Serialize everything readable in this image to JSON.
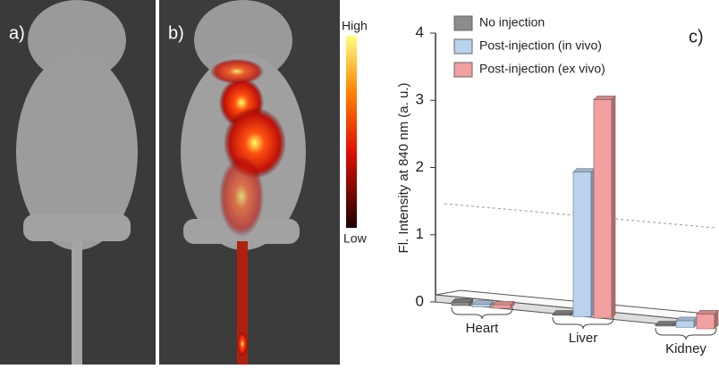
{
  "chart_data": {
    "type": "bar",
    "panel_labels": [
      "a)",
      "b)",
      "c)"
    ],
    "colorbar_labels": {
      "high": "High",
      "low": "Low"
    },
    "ylabel": "Fl. Intensity at 840 nm (a. u.)",
    "categories": [
      "Heart",
      "Liver",
      "Kidney"
    ],
    "series": [
      {
        "name": "No injection",
        "color": "#8c8c8c",
        "values": [
          0.05,
          0.02,
          0.02
        ]
      },
      {
        "name": "Post-injection (in vivo)",
        "color": "#b9d3ee",
        "values": [
          0.04,
          2.15,
          0.1
        ]
      },
      {
        "name": "Post-injection (ex vivo)",
        "color": "#f2a0a0",
        "values": [
          0.05,
          3.25,
          0.22
        ]
      }
    ],
    "ylim": [
      0,
      4
    ],
    "yticks": [
      0,
      1,
      2,
      3,
      4
    ]
  }
}
